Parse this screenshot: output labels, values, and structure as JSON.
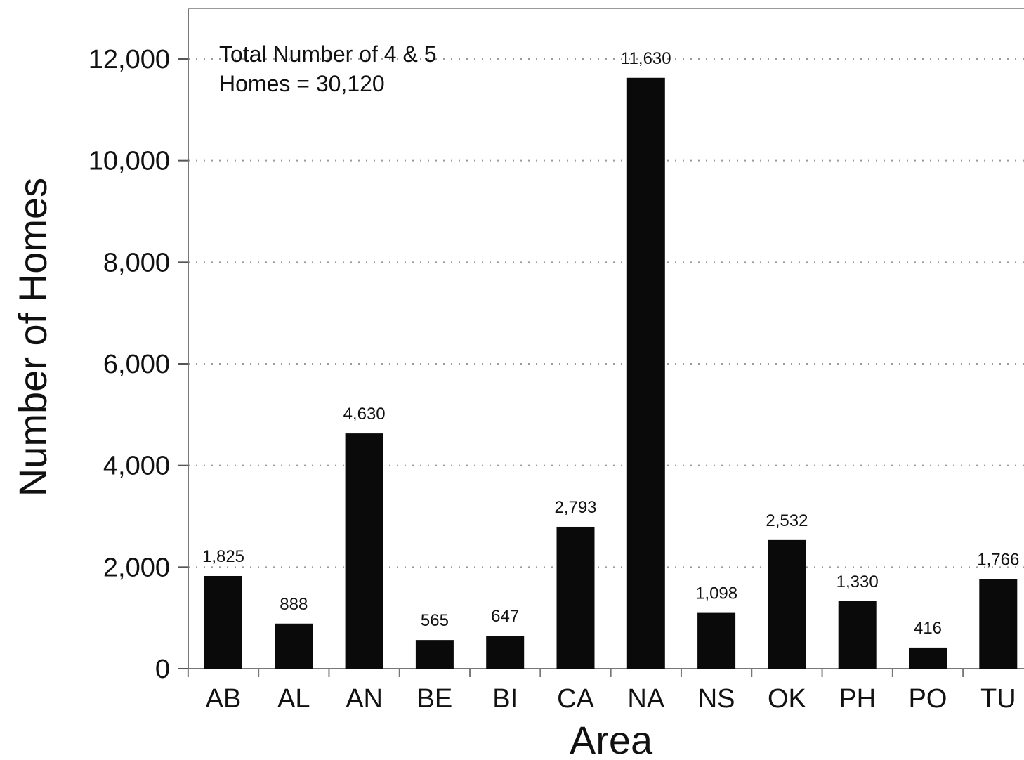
{
  "chart_data": {
    "type": "bar",
    "categories": [
      "AB",
      "AL",
      "AN",
      "BE",
      "BI",
      "CA",
      "NA",
      "NS",
      "OK",
      "PH",
      "PO",
      "TU"
    ],
    "values": [
      1825,
      888,
      4630,
      565,
      647,
      2793,
      11630,
      1098,
      2532,
      1330,
      416,
      1766
    ],
    "data_labels": [
      "1,825",
      "888",
      "4,630",
      "565",
      "647",
      "2,793",
      "11,630",
      "1,098",
      "2,532",
      "1,330",
      "416",
      "1,766"
    ],
    "xlabel": "Area",
    "ylabel": "Number of Homes",
    "ylim": [
      0,
      13000
    ],
    "yticks": [
      0,
      2000,
      4000,
      6000,
      8000,
      10000,
      12000
    ],
    "ytick_labels": [
      "0",
      "2,000",
      "4,000",
      "6,000",
      "8,000",
      "10,000",
      "12,000"
    ],
    "annotation": [
      "Total Number of 4 & 5",
      "Homes = 30,120"
    ],
    "grid": "horizontal dotted",
    "bar_color": "#0a0a0a"
  }
}
